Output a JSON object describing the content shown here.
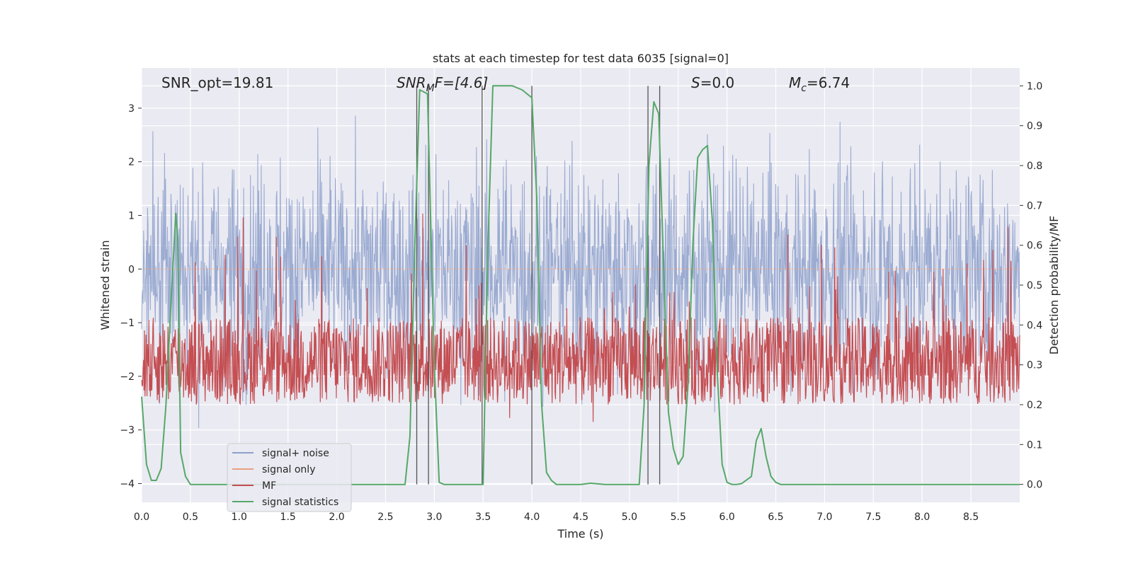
{
  "chart_data": {
    "type": "line",
    "title": "stats at each timestep for test data 6035 [signal=0]",
    "xlabel": "Time (s)",
    "ylabel_left": "Whitened strain",
    "ylabel_right": "Detection probability/MF",
    "xlim": [
      0.0,
      9.0
    ],
    "ylim_left": [
      -4.35,
      3.75
    ],
    "ylim_right": [
      -0.045,
      1.045
    ],
    "x_ticks": [
      "0.0",
      "0.5",
      "1.0",
      "1.5",
      "2.0",
      "2.5",
      "3.0",
      "3.5",
      "4.0",
      "4.5",
      "5.0",
      "5.5",
      "6.0",
      "6.5",
      "7.0",
      "7.5",
      "8.0",
      "8.5"
    ],
    "y_left_ticks": [
      "3",
      "2",
      "1",
      "0",
      "−1",
      "−2",
      "−3",
      "−4"
    ],
    "y_right_ticks": [
      "1.0",
      "0.9",
      "0.8",
      "0.7",
      "0.6",
      "0.5",
      "0.4",
      "0.3",
      "0.2",
      "0.1",
      "0.0"
    ],
    "annotations": {
      "snr_opt": "SNR_opt=19.81",
      "snr_mf_label": "SNR",
      "snr_mf_sub": "M",
      "snr_mf_rest": "F=[4.6]",
      "s_label": "S",
      "s_rest": "=0.0",
      "mc_label": "M",
      "mc_sub": "c",
      "mc_rest": "=6.74"
    },
    "legend": [
      "signal+ noise",
      "signal only",
      "MF",
      "signal statistics"
    ],
    "colors": {
      "noise": "#8da0cb",
      "signal_only": "#e8a07f",
      "mf": "#c44e52",
      "stats": "#55a868",
      "vlines": "#555555",
      "axes_bg": "#eaeaf2",
      "grid": "#ffffff"
    },
    "noise": {
      "std": 0.95,
      "max_abs": 4.0,
      "n_samples": 1800
    },
    "mf": {
      "center": 0.31,
      "spread": 0.22,
      "max": 0.85,
      "min": 0.0,
      "axis": "right"
    },
    "vlines_x": [
      2.82,
      2.94,
      3.49,
      4.0,
      5.19,
      5.31
    ],
    "signal_statistics": {
      "axis": "right",
      "x": [
        0.0,
        0.05,
        0.1,
        0.15,
        0.2,
        0.25,
        0.3,
        0.35,
        0.37,
        0.4,
        0.45,
        0.5,
        0.55,
        1.0,
        1.5,
        2.0,
        2.5,
        2.7,
        2.75,
        2.8,
        2.85,
        2.93,
        3.0,
        3.05,
        3.1,
        3.5,
        3.55,
        3.6,
        3.7,
        3.8,
        3.9,
        3.95,
        4.0,
        4.05,
        4.1,
        4.15,
        4.2,
        4.25,
        4.5,
        4.6,
        4.75,
        5.0,
        5.1,
        5.15,
        5.2,
        5.25,
        5.3,
        5.35,
        5.4,
        5.45,
        5.5,
        5.55,
        5.6,
        5.65,
        5.7,
        5.75,
        5.8,
        5.85,
        5.9,
        5.95,
        6.0,
        6.05,
        6.1,
        6.15,
        6.25,
        6.3,
        6.35,
        6.4,
        6.45,
        6.5,
        6.55,
        6.6,
        7.0,
        7.5,
        8.0,
        8.5,
        9.0
      ],
      "y": [
        0.22,
        0.05,
        0.01,
        0.01,
        0.04,
        0.2,
        0.45,
        0.68,
        0.62,
        0.08,
        0.02,
        0.0,
        0.0,
        0.0,
        0.0,
        0.0,
        0.0,
        0.0,
        0.12,
        0.6,
        0.99,
        0.98,
        0.3,
        0.005,
        0.0,
        0.0,
        0.6,
        1.0,
        1.0,
        1.0,
        0.99,
        0.98,
        0.97,
        0.72,
        0.2,
        0.03,
        0.01,
        0.0,
        0.0,
        0.003,
        0.0,
        0.0,
        0.0,
        0.2,
        0.8,
        0.96,
        0.93,
        0.55,
        0.18,
        0.09,
        0.05,
        0.07,
        0.25,
        0.6,
        0.82,
        0.84,
        0.85,
        0.66,
        0.28,
        0.05,
        0.005,
        0.0,
        0.0,
        0.002,
        0.02,
        0.11,
        0.14,
        0.07,
        0.02,
        0.005,
        0.0,
        0.0,
        0.0,
        0.0,
        0.0,
        0.0,
        0.0
      ]
    }
  }
}
